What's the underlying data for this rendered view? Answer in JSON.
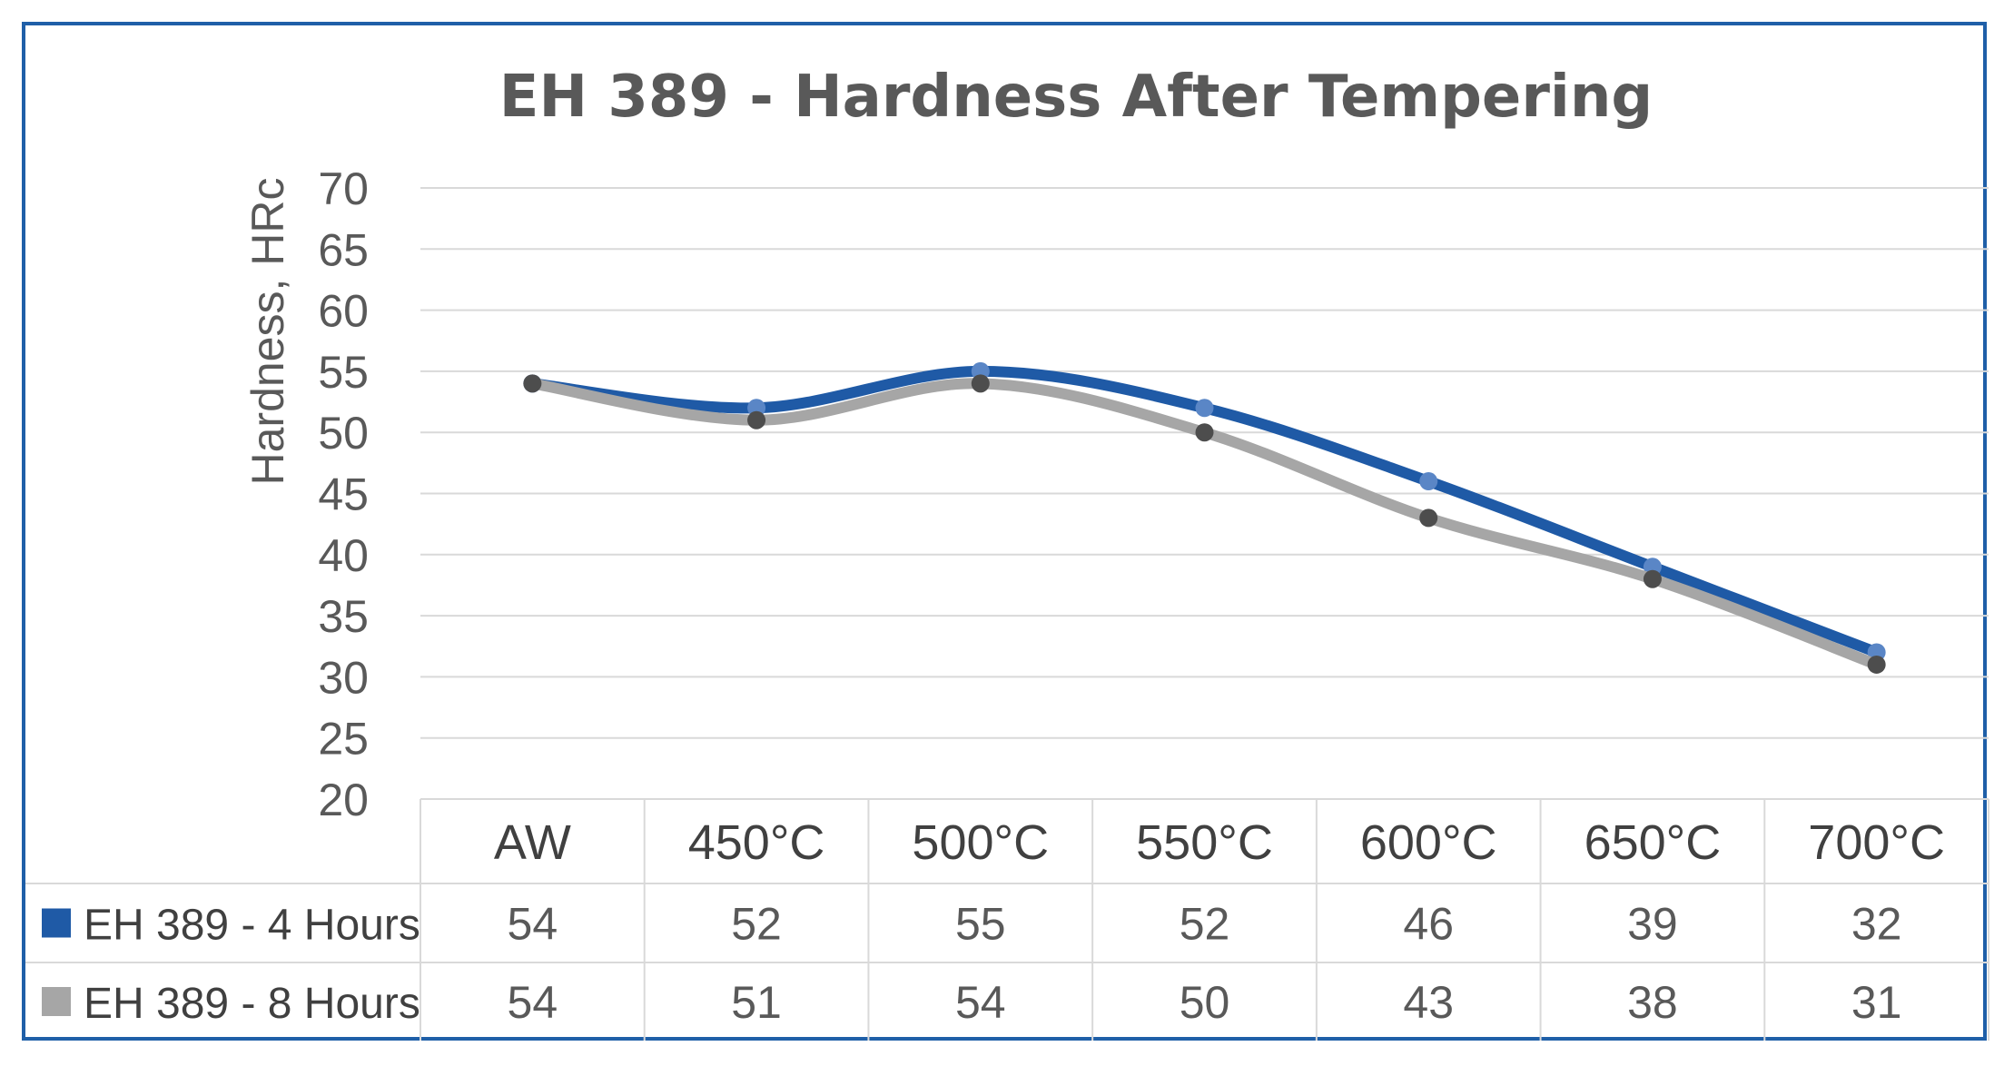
{
  "chart_data": {
    "type": "line",
    "title": "EH 389 - Hardness After Tempering",
    "xlabel": "",
    "ylabel": "Hardness, HRc",
    "ylim": [
      20,
      70
    ],
    "ytick_step": 5,
    "grid": true,
    "categories": [
      "AW",
      "450°C",
      "500°C",
      "550°C",
      "600°C",
      "650°C",
      "700°C"
    ],
    "series": [
      {
        "name": "EH 389 - 4 Hours",
        "values": [
          54,
          52,
          55,
          52,
          46,
          39,
          32
        ],
        "color": "#1f5aa6",
        "marker_color": "#5a86c6"
      },
      {
        "name": "EH 389 - 8 Hours",
        "values": [
          54,
          51,
          54,
          50,
          43,
          38,
          31
        ],
        "color": "#a6a6a6",
        "marker_color": "#4d4d4d"
      }
    ],
    "legend": "data-table"
  }
}
